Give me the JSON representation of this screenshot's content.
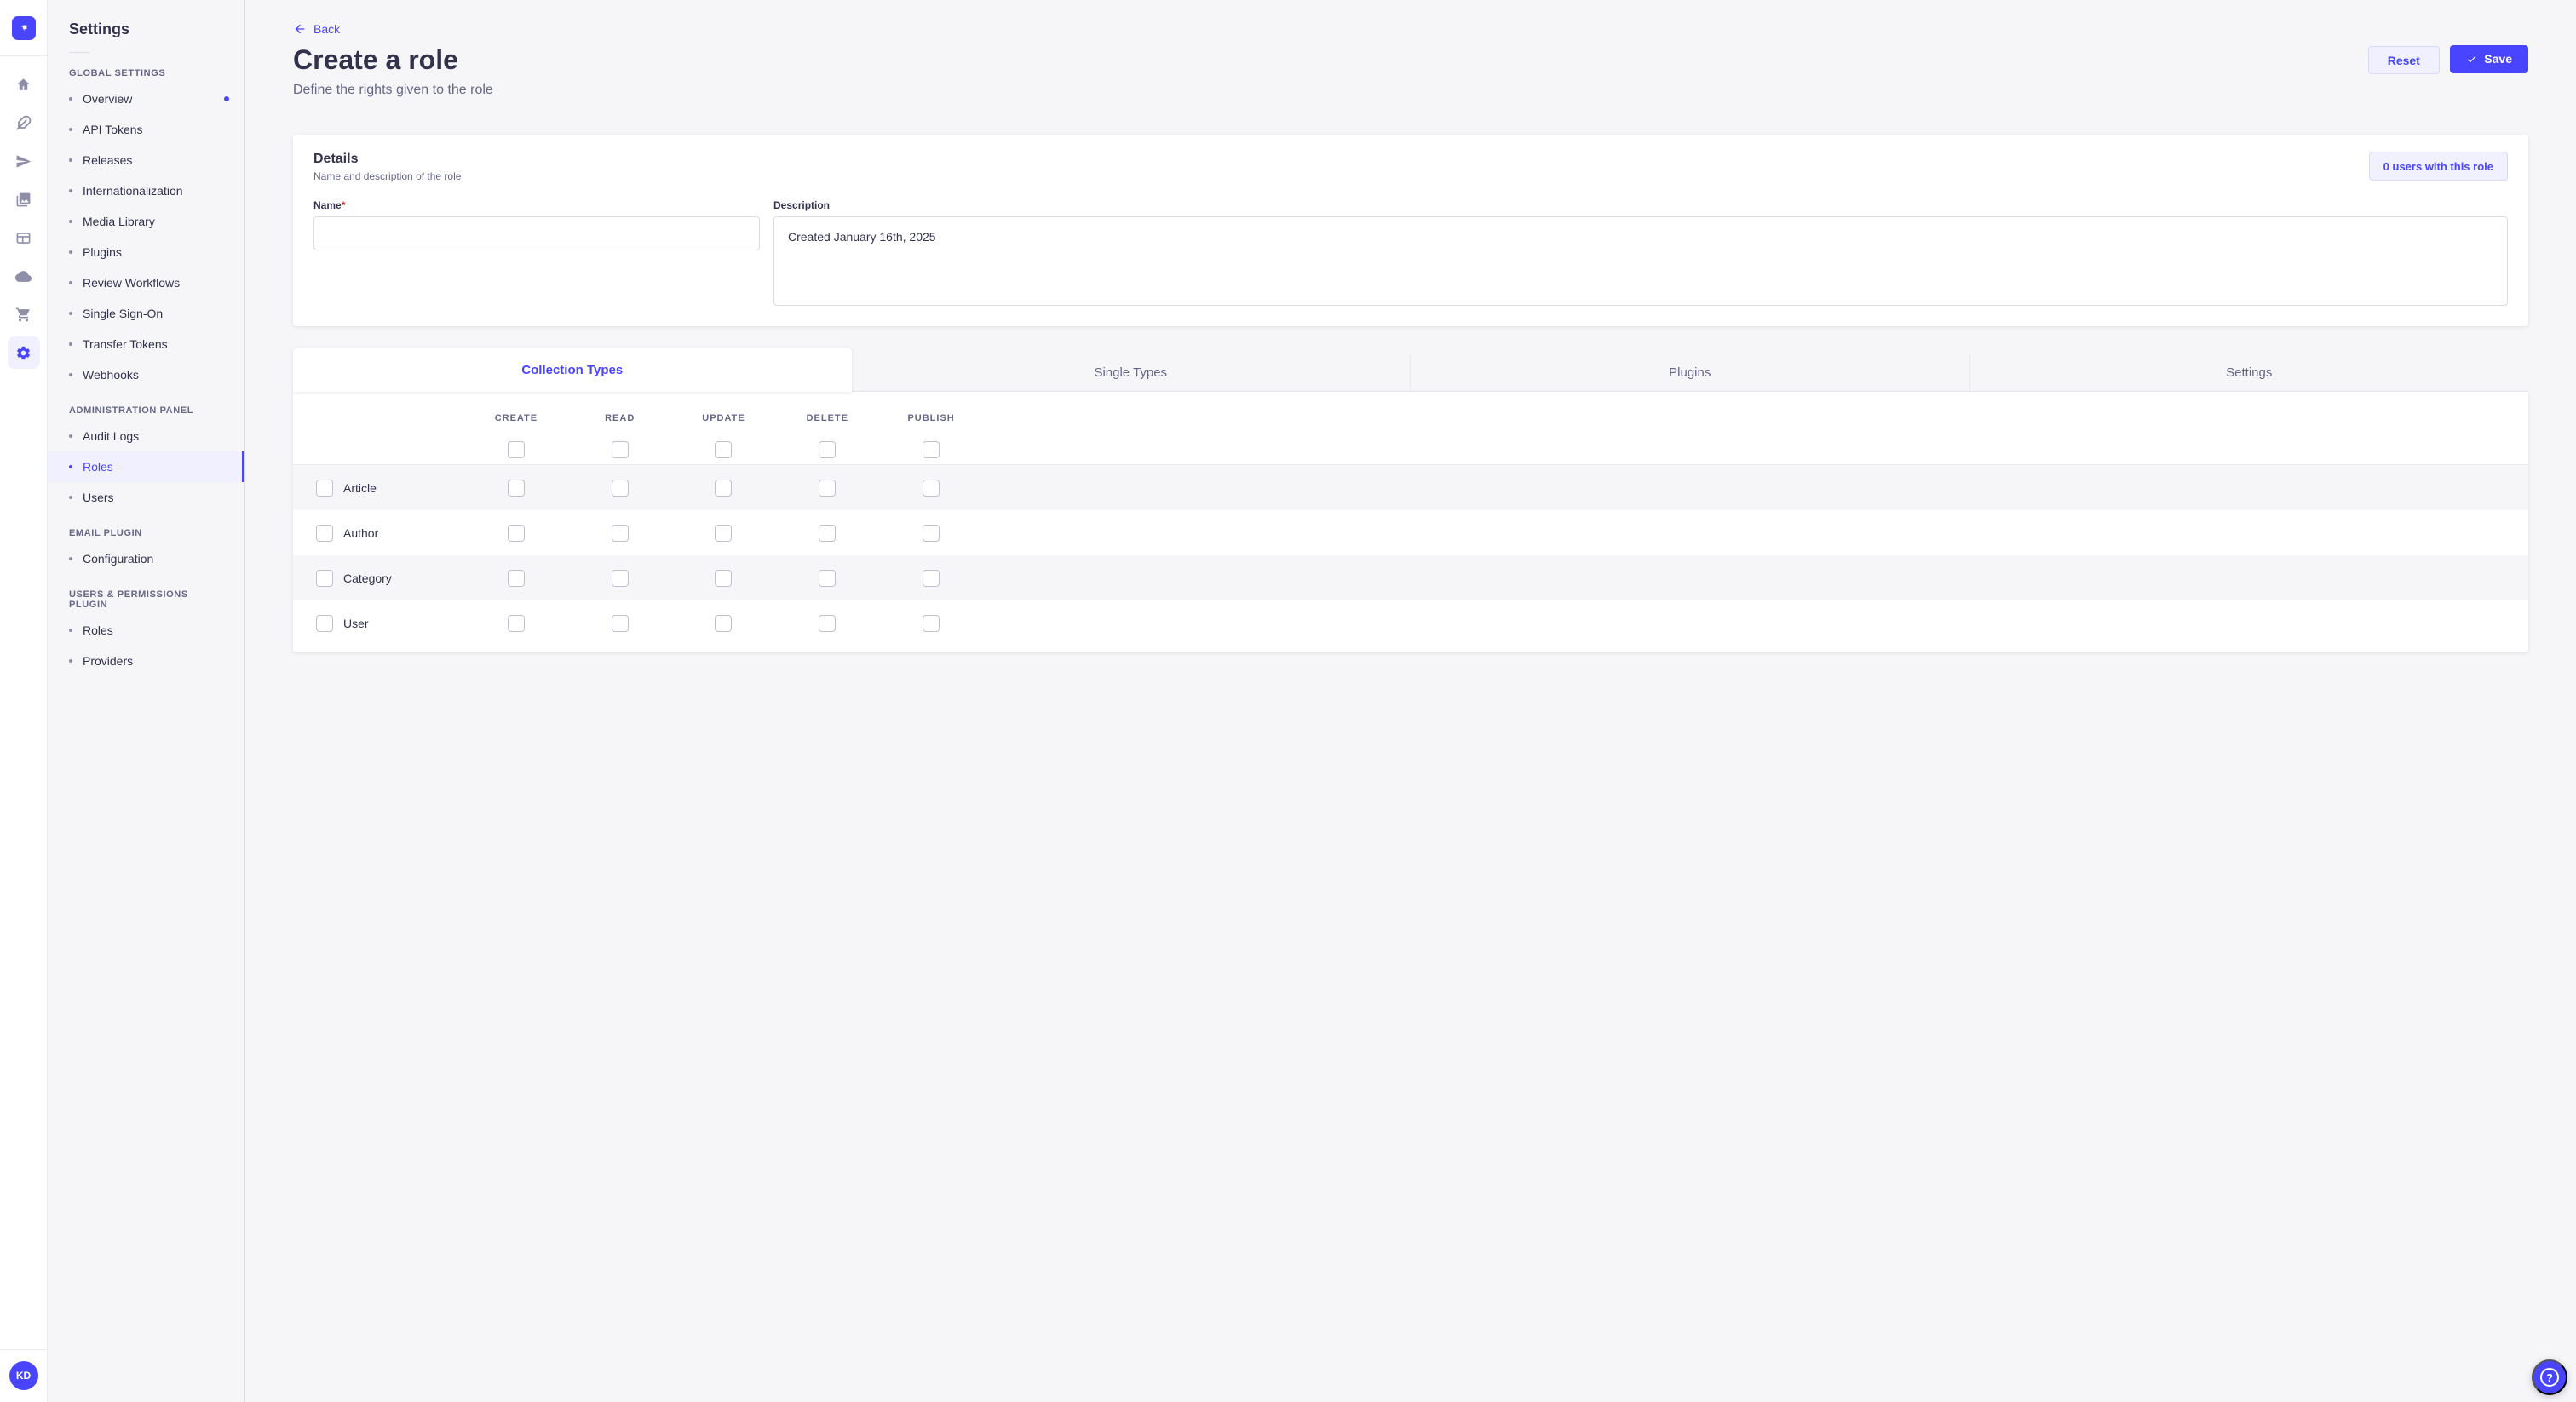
{
  "colors": {
    "accent": "#4945ff",
    "accent_bg": "#f0f0ff",
    "accent_border": "#d9d8ff",
    "text_dark": "#32324d",
    "text_muted": "#666687",
    "page_bg": "#f6f6f9",
    "required_red": "#d02b20"
  },
  "rail": {
    "logo_icon": "strapi-logo-icon",
    "icons": [
      {
        "name": "home-icon",
        "active": false
      },
      {
        "name": "content-feather-icon",
        "active": false
      },
      {
        "name": "release-paper-plane-icon",
        "active": false
      },
      {
        "name": "media-library-icon",
        "active": false
      },
      {
        "name": "content-type-builder-icon",
        "active": false
      },
      {
        "name": "cloud-icon",
        "active": false
      },
      {
        "name": "marketplace-cart-icon",
        "active": false
      },
      {
        "name": "settings-gear-icon",
        "active": true
      }
    ],
    "avatar_initials": "KD"
  },
  "sidebar": {
    "title": "Settings",
    "sections": [
      {
        "label": "GLOBAL SETTINGS",
        "items": [
          {
            "label": "Overview",
            "active": false,
            "notification_dot": true
          },
          {
            "label": "API Tokens",
            "active": false
          },
          {
            "label": "Releases",
            "active": false
          },
          {
            "label": "Internationalization",
            "active": false
          },
          {
            "label": "Media Library",
            "active": false
          },
          {
            "label": "Plugins",
            "active": false
          },
          {
            "label": "Review Workflows",
            "active": false
          },
          {
            "label": "Single Sign-On",
            "active": false
          },
          {
            "label": "Transfer Tokens",
            "active": false
          },
          {
            "label": "Webhooks",
            "active": false
          }
        ]
      },
      {
        "label": "ADMINISTRATION PANEL",
        "items": [
          {
            "label": "Audit Logs",
            "active": false
          },
          {
            "label": "Roles",
            "active": true
          },
          {
            "label": "Users",
            "active": false
          }
        ]
      },
      {
        "label": "EMAIL PLUGIN",
        "items": [
          {
            "label": "Configuration",
            "active": false
          }
        ]
      },
      {
        "label": "USERS & PERMISSIONS PLUGIN",
        "items": [
          {
            "label": "Roles",
            "active": false
          },
          {
            "label": "Providers",
            "active": false
          }
        ]
      }
    ]
  },
  "header": {
    "back_label": "Back",
    "title": "Create a role",
    "subtitle": "Define the rights given to the role",
    "reset_label": "Reset",
    "save_label": "Save"
  },
  "details_card": {
    "title": "Details",
    "subtitle": "Name and description of the role",
    "users_count_label": "0 users with this role",
    "name_label": "Name",
    "name_required_mark": "*",
    "name_value": "",
    "description_label": "Description",
    "description_value": "Created January 16th, 2025"
  },
  "permissions_card": {
    "tabs": [
      {
        "label": "Collection Types",
        "active": true
      },
      {
        "label": "Single Types",
        "active": false
      },
      {
        "label": "Plugins",
        "active": false
      },
      {
        "label": "Settings",
        "active": false
      }
    ],
    "columns": [
      "CREATE",
      "READ",
      "UPDATE",
      "DELETE",
      "PUBLISH"
    ],
    "select_all_checkboxes": [
      false,
      false,
      false,
      false,
      false
    ],
    "rows": [
      {
        "label": "Article",
        "selected": false,
        "values": [
          false,
          false,
          false,
          false,
          false
        ]
      },
      {
        "label": "Author",
        "selected": false,
        "values": [
          false,
          false,
          false,
          false,
          false
        ]
      },
      {
        "label": "Category",
        "selected": false,
        "values": [
          false,
          false,
          false,
          false,
          false
        ]
      },
      {
        "label": "User",
        "selected": false,
        "values": [
          false,
          false,
          false,
          false,
          false
        ]
      }
    ]
  },
  "help": {
    "label": "?"
  }
}
